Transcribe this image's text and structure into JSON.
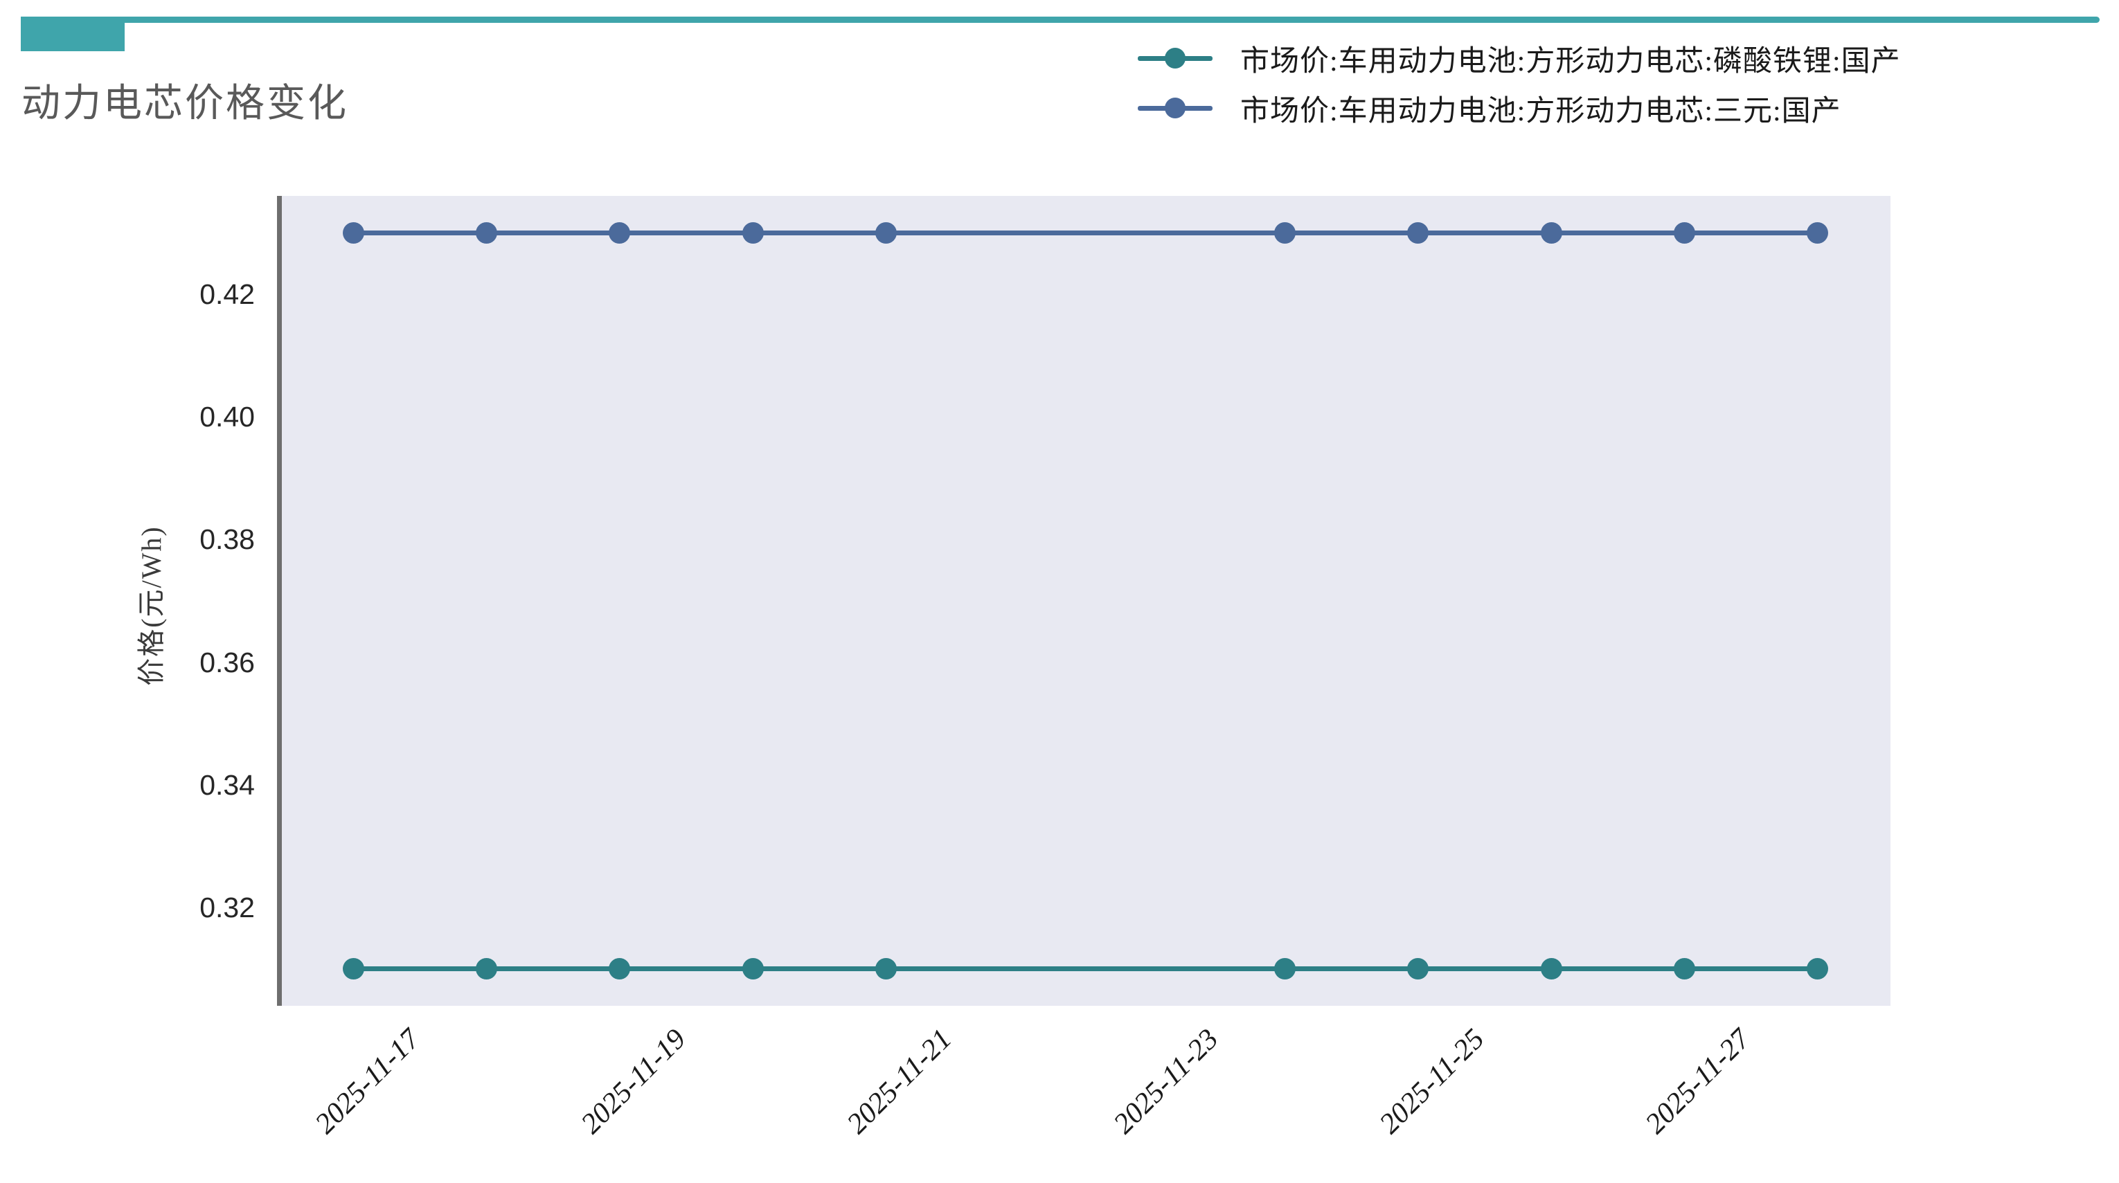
{
  "header": {
    "title": "动力电芯价格变化",
    "accent_color": "#3fa5ab"
  },
  "legend": {
    "position": "top-right",
    "items": [
      {
        "label": "市场价:车用动力电池:方形动力电芯:磷酸铁锂:国产",
        "color": "#2d7f86"
      },
      {
        "label": "市场价:车用动力电池:方形动力电芯:三元:国产",
        "color": "#4b6a9b"
      }
    ]
  },
  "chart_data": {
    "type": "line",
    "title": "动力电芯价格变化",
    "x": [
      "2025-11-17",
      "2025-11-18",
      "2025-11-19",
      "2025-11-20",
      "2025-11-21",
      "2025-11-24",
      "2025-11-25",
      "2025-11-26",
      "2025-11-27",
      "2025-11-28"
    ],
    "series": [
      {
        "name": "市场价:车用动力电池:方形动力电芯:磷酸铁锂:国产",
        "color": "#2d7f86",
        "values": [
          0.31,
          0.31,
          0.31,
          0.31,
          0.31,
          0.31,
          0.31,
          0.31,
          0.31,
          0.31
        ]
      },
      {
        "name": "市场价:车用动力电池:方形动力电芯:三元:国产",
        "color": "#4b6a9b",
        "values": [
          0.43,
          0.43,
          0.43,
          0.43,
          0.43,
          0.43,
          0.43,
          0.43,
          0.43,
          0.43
        ]
      }
    ],
    "xlabel": "",
    "ylabel": "价格(元/Wh)",
    "yticks": [
      0.32,
      0.34,
      0.36,
      0.38,
      0.4,
      0.42
    ],
    "xtick_labels": [
      "2025-11-17",
      "2025-11-19",
      "2025-11-21",
      "2025-11-23",
      "2025-11-25",
      "2025-11-27"
    ],
    "ylim": [
      0.304,
      0.436
    ],
    "xlim_days": [
      -0.55,
      11.55
    ],
    "grid": false,
    "legend_position": "top-right",
    "plot_bg_color": "#e8e9f2",
    "axis_spine_color": "#6e6e6e"
  }
}
